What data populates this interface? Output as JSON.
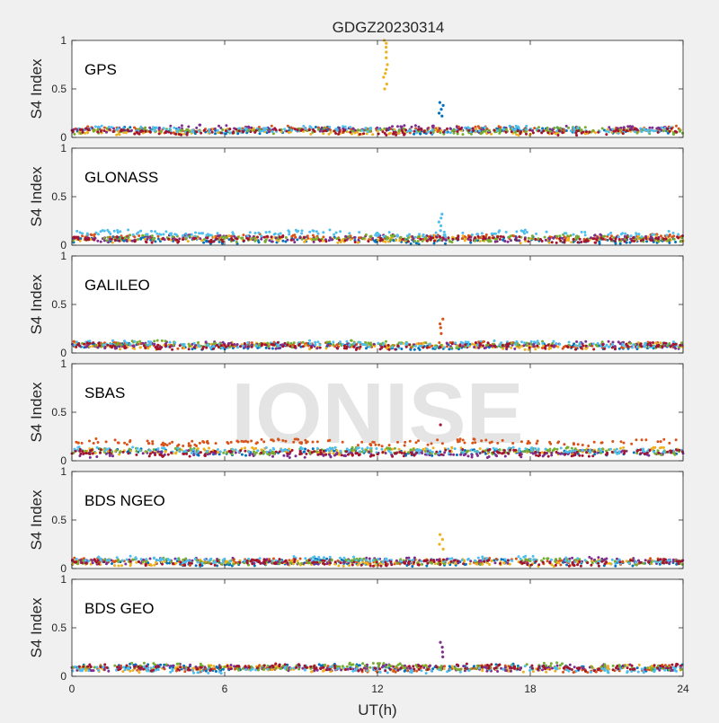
{
  "figure": {
    "title": "GDGZ20230314",
    "watermark": "IONISE",
    "xlabel": "UT(h)",
    "ylabel": "S4 Index",
    "xlim": [
      0,
      24
    ],
    "ylim": [
      0,
      1
    ],
    "xticks": [
      0,
      6,
      12,
      18,
      24
    ],
    "yticks": [
      0,
      0.5,
      1
    ],
    "xtick_labels": [
      "0",
      "6",
      "12",
      "18",
      "24"
    ],
    "ytick_labels": [
      "0",
      "0.5",
      "1"
    ]
  },
  "colors": {
    "background": "#f0f0f0",
    "axes_bg": "#ffffff",
    "watermark": "#e4e4e4",
    "series": [
      "#0072BD",
      "#D95319",
      "#EDB120",
      "#7E2F8E",
      "#77AC30",
      "#4DBEEE",
      "#A2142F"
    ]
  },
  "chart_data": [
    {
      "type": "scatter",
      "label": "GPS",
      "base": [
        0.07,
        0.08,
        0.06,
        0.09,
        0.07,
        0.08,
        0.06
      ],
      "spikes": [
        {
          "x": 12.3,
          "y": [
            0.5,
            0.55,
            0.62,
            0.66,
            0.7,
            0.75,
            0.82,
            0.88,
            0.93,
            0.97,
            1.0
          ],
          "color": 2
        },
        {
          "x": 14.5,
          "y": [
            0.22,
            0.25,
            0.29,
            0.33,
            0.36
          ],
          "color": 0
        }
      ]
    },
    {
      "type": "scatter",
      "label": "GLONASS",
      "base": [
        0.05,
        0.08,
        0.06,
        0.07,
        0.07,
        0.12,
        0.06
      ],
      "spikes": [
        {
          "x": 14.5,
          "y": [
            0.15,
            0.2,
            0.24,
            0.28,
            0.32
          ],
          "color": 5
        }
      ]
    },
    {
      "type": "scatter",
      "label": "GALILEO",
      "base": [
        0.07,
        0.08,
        0.07,
        0.08,
        0.09,
        0.09,
        0.07
      ],
      "spikes": [
        {
          "x": 14.5,
          "y": [
            0.2,
            0.26,
            0.3,
            0.35
          ],
          "color": 1
        }
      ]
    },
    {
      "type": "scatter",
      "label": "SBAS",
      "base": [
        0.09,
        0.19,
        0.1,
        0.07,
        0.1,
        0.11,
        0.08
      ],
      "spikes": [
        {
          "x": 14.5,
          "y": [
            0.37
          ],
          "color": 6
        }
      ]
    },
    {
      "type": "scatter",
      "label": "BDS NGEO",
      "base": [
        0.06,
        0.07,
        0.06,
        0.08,
        0.07,
        0.09,
        0.06
      ],
      "spikes": [
        {
          "x": 14.5,
          "y": [
            0.2,
            0.25,
            0.3,
            0.35
          ],
          "color": 2
        }
      ]
    },
    {
      "type": "scatter",
      "label": "BDS GEO",
      "base": [
        0.09,
        0.08,
        0.08,
        0.09,
        0.1,
        0.07,
        0.09
      ],
      "spikes": [
        {
          "x": 14.5,
          "y": [
            0.2,
            0.25,
            0.3,
            0.35
          ],
          "color": 3
        }
      ]
    }
  ]
}
